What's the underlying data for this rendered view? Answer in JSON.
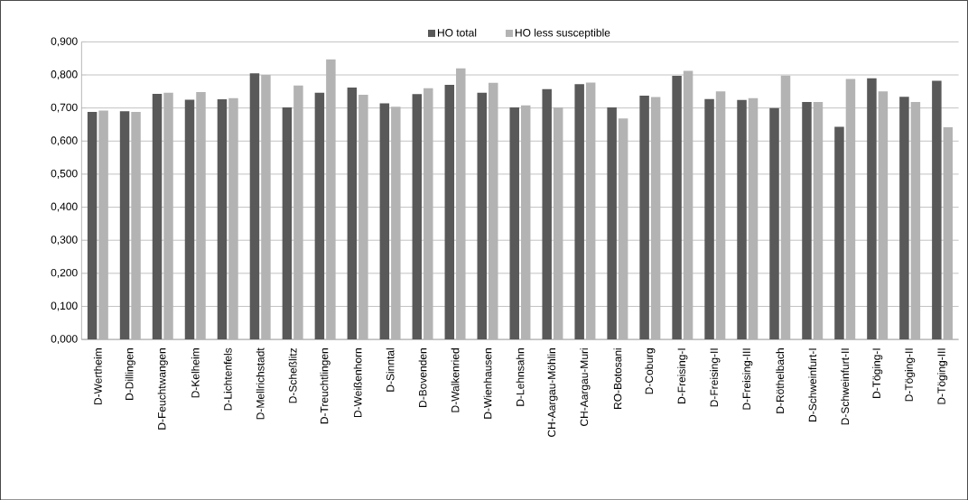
{
  "chart_data": {
    "type": "bar",
    "categories": [
      "D-Wertheim",
      "D-Dillingen",
      "D-Feuchtwangen",
      "D-Kelheim",
      "D-Lichtenfels",
      "D-Mellrichstadt",
      "D-Scheßlitz",
      "D-Treuchtlingen",
      "D-Weißenhorn",
      "D-Sinntal",
      "D-Bovenden",
      "D-Walkenried",
      "D-Wienhausen",
      "D-Lehnsahn",
      "CH-Aargau-Möhlin",
      "CH-Aargau-Muri",
      "RO-Botosani",
      "D-Coburg",
      "D-Freising-I",
      "D-Freising-II",
      "D-Freising-III",
      "D-Röthelbach",
      "D-Schweinfurt-I",
      "D-Schweinfurt-II",
      "D-Töging-I",
      "D-Töging-II",
      "D-Töging-III"
    ],
    "series": [
      {
        "name": "HO total",
        "color": "#595959",
        "values": [
          0.688,
          0.69,
          0.743,
          0.725,
          0.726,
          0.805,
          0.702,
          0.746,
          0.762,
          0.714,
          0.742,
          0.77,
          0.746,
          0.702,
          0.757,
          0.772,
          0.702,
          0.737,
          0.797,
          0.727,
          0.724,
          0.7,
          0.718,
          0.643,
          0.79,
          0.734,
          0.782
        ]
      },
      {
        "name": "HO less susceptible",
        "color": "#b3b3b3",
        "values": [
          0.692,
          0.688,
          0.746,
          0.748,
          0.73,
          0.8,
          0.768,
          0.847,
          0.74,
          0.704,
          0.76,
          0.82,
          0.776,
          0.708,
          0.702,
          0.777,
          0.668,
          0.733,
          0.812,
          0.75,
          0.73,
          0.798,
          0.718,
          0.788,
          0.75,
          0.718,
          0.642
        ]
      }
    ],
    "ylim": [
      0,
      0.9
    ],
    "yticks": [
      {
        "value": 0,
        "label": "0,000"
      },
      {
        "value": 0.1,
        "label": "0,100"
      },
      {
        "value": 0.2,
        "label": "0,200"
      },
      {
        "value": 0.3,
        "label": "0,300"
      },
      {
        "value": 0.4,
        "label": "0,400"
      },
      {
        "value": 0.5,
        "label": "0,500"
      },
      {
        "value": 0.6,
        "label": "0,600"
      },
      {
        "value": 0.7,
        "label": "0,700"
      },
      {
        "value": 0.8,
        "label": "0,800"
      },
      {
        "value": 0.9,
        "label": "0,900"
      }
    ],
    "grid": "y",
    "legend": "top"
  }
}
